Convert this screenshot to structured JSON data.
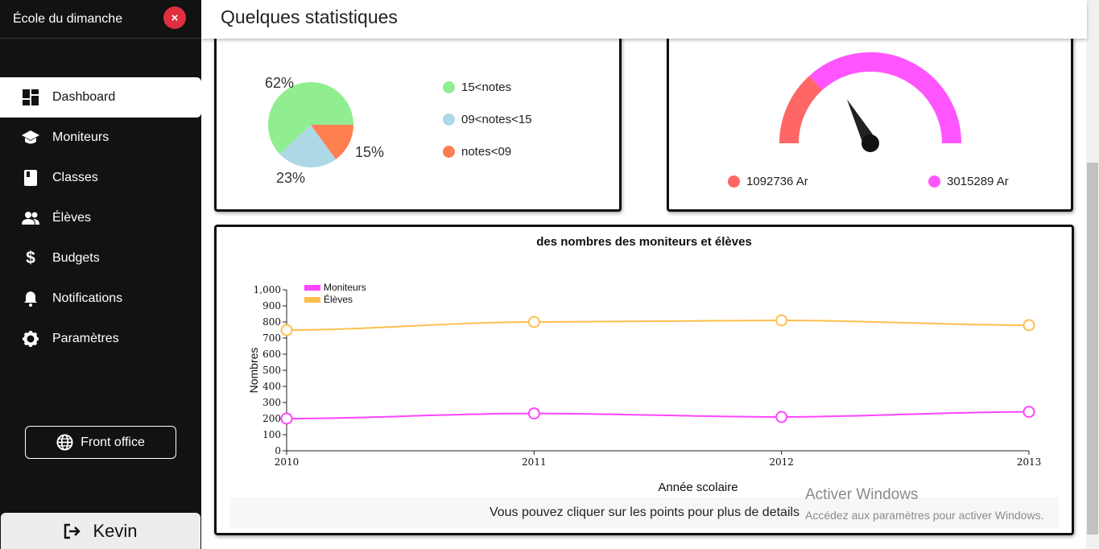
{
  "sidebar": {
    "title": "École du dimanche",
    "close_icon": "×",
    "items": [
      {
        "label": "Dashboard",
        "icon": "dashboard-icon",
        "active": true
      },
      {
        "label": "Moniteurs",
        "icon": "school-icon"
      },
      {
        "label": "Classes",
        "icon": "book-icon"
      },
      {
        "label": "Élèves",
        "icon": "people-icon"
      },
      {
        "label": "Budgets",
        "icon": "dollar-icon"
      },
      {
        "label": "Notifications",
        "icon": "bell-icon"
      },
      {
        "label": "Paramètres",
        "icon": "gear-icon"
      }
    ],
    "front_office": "Front office",
    "user": "Kevin"
  },
  "header": {
    "title": "Quelques statistiques"
  },
  "pie": {
    "labels": {
      "green": "62%",
      "blue": "23%",
      "orange": "15%"
    },
    "legend": [
      "15<notes",
      "09<notes<15",
      "notes<09"
    ],
    "colors": {
      "green": "#90ee90",
      "blue": "#add8e6",
      "orange": "#ff7f50"
    }
  },
  "gauge": {
    "legend": [
      "1092736 Ar",
      "3015289 Ar"
    ],
    "colors": {
      "red": "#ff6666",
      "magenta": "#ff55ff"
    },
    "values": [
      1092736,
      3015289
    ]
  },
  "line_chart": {
    "hint": "Vous pouvez cliquer sur les points pour plus de details"
  },
  "chart_data": [
    {
      "type": "pie",
      "categories": [
        "15<notes",
        "09<notes<15",
        "notes<09"
      ],
      "values": [
        62,
        23,
        15
      ],
      "unit": "%"
    },
    {
      "type": "line",
      "title": "des nombres des moniteurs et élèves",
      "xlabel": "Année scolaire",
      "ylabel": "Nombres",
      "x": [
        "2010",
        "2011",
        "2012",
        "2013"
      ],
      "ylim": [
        0,
        1000
      ],
      "yticks": [
        "0",
        "100",
        "200",
        "300",
        "400",
        "500",
        "600",
        "700",
        "800",
        "900",
        "1,000"
      ],
      "series": [
        {
          "name": "Moniteurs",
          "values": [
            200,
            232,
            210,
            242
          ],
          "color": "#ff44ff"
        },
        {
          "name": "Élèves",
          "values": [
            750,
            800,
            810,
            780
          ],
          "color": "#ffbe4d"
        }
      ],
      "legend": "top-left"
    }
  ],
  "watermark": {
    "line1": "Activer Windows",
    "line2": "Accédez aux paramètres pour activer Windows."
  }
}
